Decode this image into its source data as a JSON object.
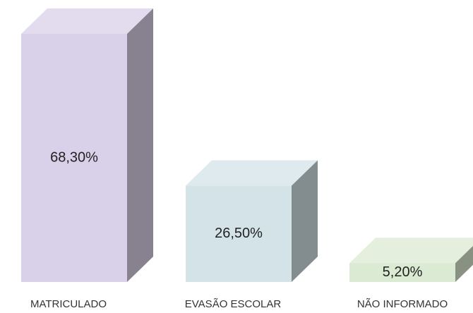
{
  "chart_data": {
    "type": "bar3d",
    "categories": [
      "MATRICULADO",
      "EVASÃO ESCOLAR",
      "NÃO INFORMADO"
    ],
    "values": [
      68.3,
      26.5,
      5.2
    ],
    "value_labels": [
      "68,30%",
      "26,50%",
      "5,20%"
    ],
    "colors": [
      "#d9d0e9",
      "#d3e3e8",
      "#dbead2"
    ]
  }
}
